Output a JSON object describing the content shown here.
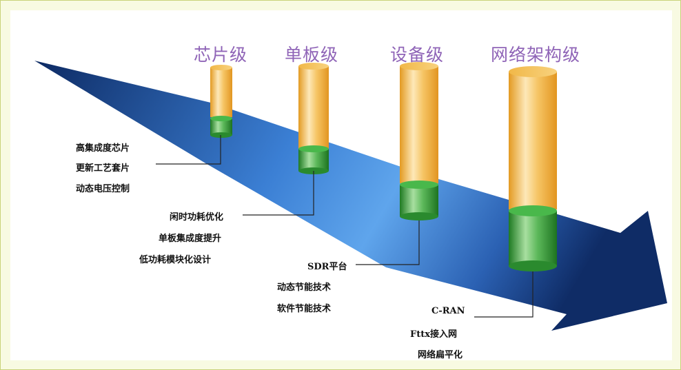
{
  "stages": [
    {
      "label": "芯片级",
      "notes": [
        "高集成度芯片",
        "更新工艺套片",
        "动态电压控制"
      ]
    },
    {
      "label": "单板级",
      "notes": [
        "闲时功耗优化",
        "单板集成度提升",
        "低功耗模块化设计"
      ]
    },
    {
      "label": "设备级",
      "notes": [
        "SDR平台",
        "动态节能技术",
        "软件节能技术"
      ]
    },
    {
      "label": "网络架构级",
      "notes": [
        "C-RAN",
        "Fttx接入网",
        "网络扁平化"
      ]
    }
  ],
  "colors": {
    "arrow_dark": "#13306b",
    "arrow_light": "#5da3ea",
    "cylinder_gold": "#f2b33d",
    "cylinder_green": "#2e9a32",
    "label_purple": "#8f64b7",
    "background": "#f8fae2"
  }
}
